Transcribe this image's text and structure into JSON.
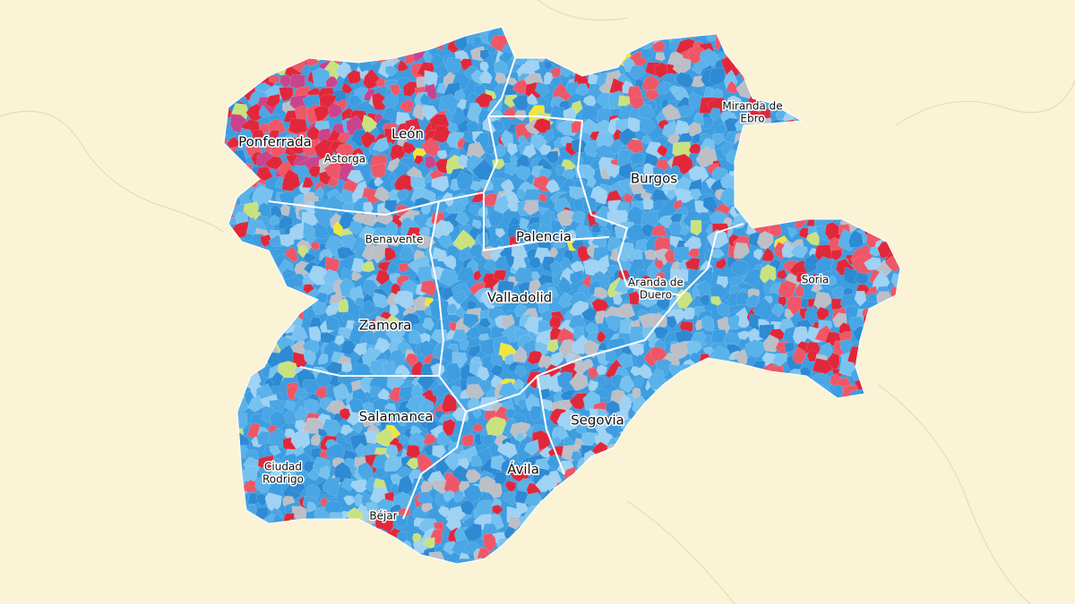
{
  "map": {
    "labels": [
      {
        "lines": [
          "Ponferrada"
        ],
        "size": "big"
      },
      {
        "lines": [
          "León"
        ],
        "size": "big"
      },
      {
        "lines": [
          "Astorga"
        ],
        "size": "small"
      },
      {
        "lines": [
          "Burgos"
        ],
        "size": "big"
      },
      {
        "lines": [
          "Miranda de",
          "Ebro"
        ],
        "size": "small"
      },
      {
        "lines": [
          "Benavente"
        ],
        "size": "small"
      },
      {
        "lines": [
          "Palencia"
        ],
        "size": "big"
      },
      {
        "lines": [
          "Soria"
        ],
        "size": "small"
      },
      {
        "lines": [
          "Valladolid"
        ],
        "size": "big"
      },
      {
        "lines": [
          "Aranda de",
          "Duero"
        ],
        "size": "small"
      },
      {
        "lines": [
          "Zamora"
        ],
        "size": "big"
      },
      {
        "lines": [
          "Salamanca"
        ],
        "size": "big"
      },
      {
        "lines": [
          "Segovia"
        ],
        "size": "big"
      },
      {
        "lines": [
          "Ciudad",
          "Rodrigo"
        ],
        "size": "small"
      },
      {
        "lines": [
          "Ávila"
        ],
        "size": "big"
      },
      {
        "lines": [
          "Béjar"
        ],
        "size": "small"
      }
    ]
  }
}
